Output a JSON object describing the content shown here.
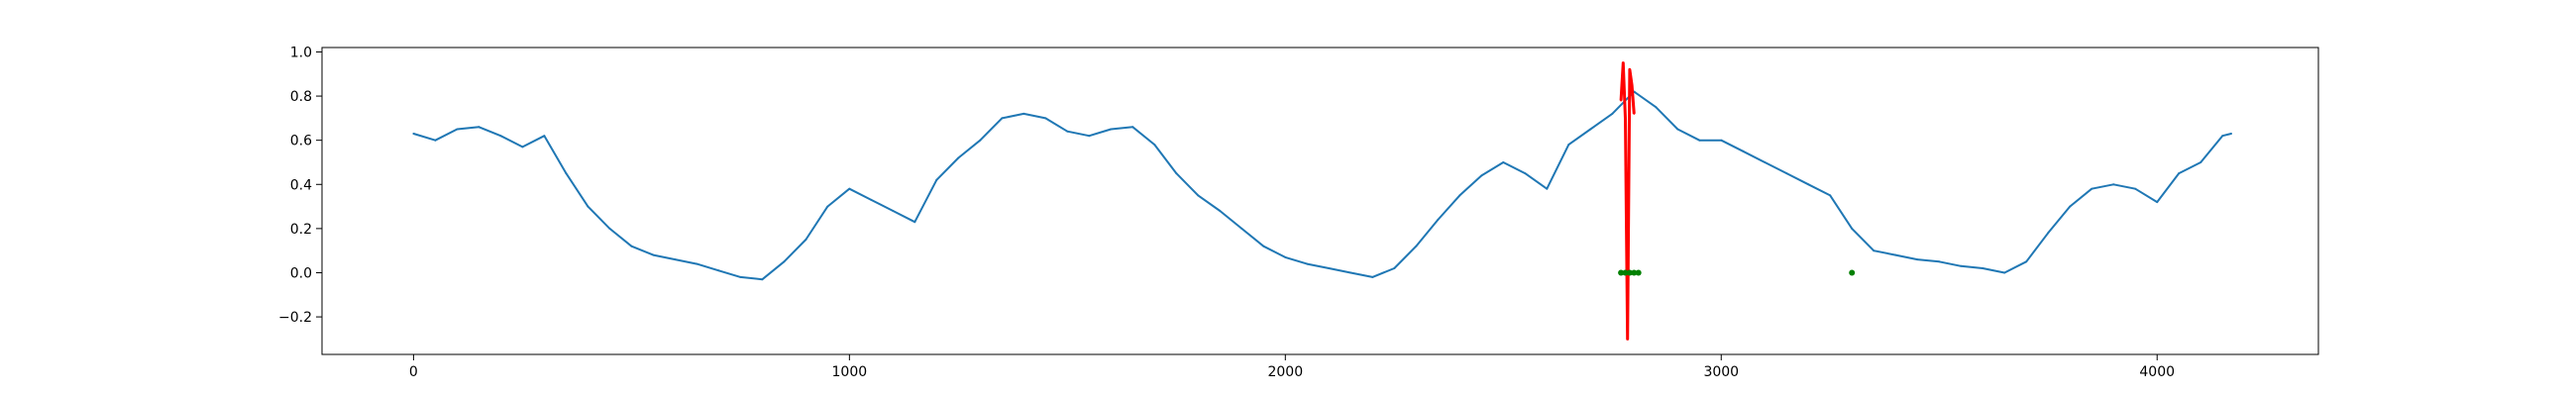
{
  "chart_data": {
    "type": "line",
    "title": "",
    "xlabel": "",
    "ylabel": "",
    "xlim": [
      -210,
      4370
    ],
    "ylim": [
      -0.37,
      1.02
    ],
    "grid": false,
    "legend": "none",
    "x_ticks": [
      0,
      1000,
      2000,
      3000,
      4000
    ],
    "x_tick_labels": [
      "0",
      "1000",
      "2000",
      "3000",
      "4000"
    ],
    "y_ticks": [
      -0.2,
      0.0,
      0.2,
      0.4,
      0.6,
      0.8,
      1.0
    ],
    "y_tick_labels": [
      "−0.2",
      "0.0",
      "0.2",
      "0.4",
      "0.6",
      "0.8",
      "1.0"
    ],
    "series": [
      {
        "color": "#1f77b4",
        "style": "line",
        "x": [
          0,
          50,
          100,
          150,
          200,
          250,
          300,
          350,
          400,
          450,
          500,
          550,
          600,
          650,
          700,
          750,
          800,
          850,
          900,
          950,
          1000,
          1050,
          1100,
          1150,
          1200,
          1250,
          1300,
          1350,
          1400,
          1450,
          1500,
          1550,
          1600,
          1650,
          1700,
          1750,
          1800,
          1850,
          1900,
          1950,
          2000,
          2050,
          2100,
          2150,
          2200,
          2250,
          2300,
          2350,
          2400,
          2450,
          2500,
          2550,
          2600,
          2650,
          2700,
          2750,
          2800,
          2850,
          2900,
          2950,
          3000,
          3050,
          3100,
          3150,
          3200,
          3250,
          3300,
          3350,
          3400,
          3450,
          3500,
          3550,
          3600,
          3650,
          3700,
          3750,
          3800,
          3850,
          3900,
          3950,
          4000,
          4050,
          4100,
          4150,
          4170
        ],
        "y": [
          0.63,
          0.6,
          0.65,
          0.66,
          0.62,
          0.57,
          0.62,
          0.45,
          0.3,
          0.2,
          0.12,
          0.08,
          0.06,
          0.04,
          0.01,
          -0.02,
          -0.03,
          0.05,
          0.15,
          0.3,
          0.38,
          0.33,
          0.28,
          0.23,
          0.42,
          0.52,
          0.6,
          0.7,
          0.72,
          0.7,
          0.64,
          0.62,
          0.65,
          0.66,
          0.58,
          0.45,
          0.35,
          0.28,
          0.2,
          0.12,
          0.07,
          0.04,
          0.02,
          0.0,
          -0.02,
          0.02,
          0.12,
          0.24,
          0.35,
          0.44,
          0.5,
          0.45,
          0.38,
          0.58,
          0.65,
          0.72,
          0.82,
          0.75,
          0.65,
          0.6,
          0.6,
          0.55,
          0.5,
          0.45,
          0.4,
          0.35,
          0.2,
          0.1,
          0.08,
          0.06,
          0.05,
          0.03,
          0.02,
          0.0,
          0.05,
          0.18,
          0.3,
          0.38,
          0.4,
          0.38,
          0.32,
          0.45,
          0.5,
          0.62,
          0.63
        ]
      },
      {
        "color": "#ff0000",
        "style": "line",
        "x": [
          2770,
          2775,
          2780,
          2785,
          2790,
          2795,
          2800
        ],
        "y": [
          0.78,
          0.95,
          0.7,
          -0.3,
          0.92,
          0.85,
          0.72
        ]
      },
      {
        "color": "#008000",
        "style": "points",
        "x": [
          2770,
          2780,
          2790,
          2800,
          2810,
          3300
        ],
        "y": [
          0.0,
          0.0,
          0.0,
          0.0,
          0.0,
          0.0
        ]
      }
    ]
  }
}
